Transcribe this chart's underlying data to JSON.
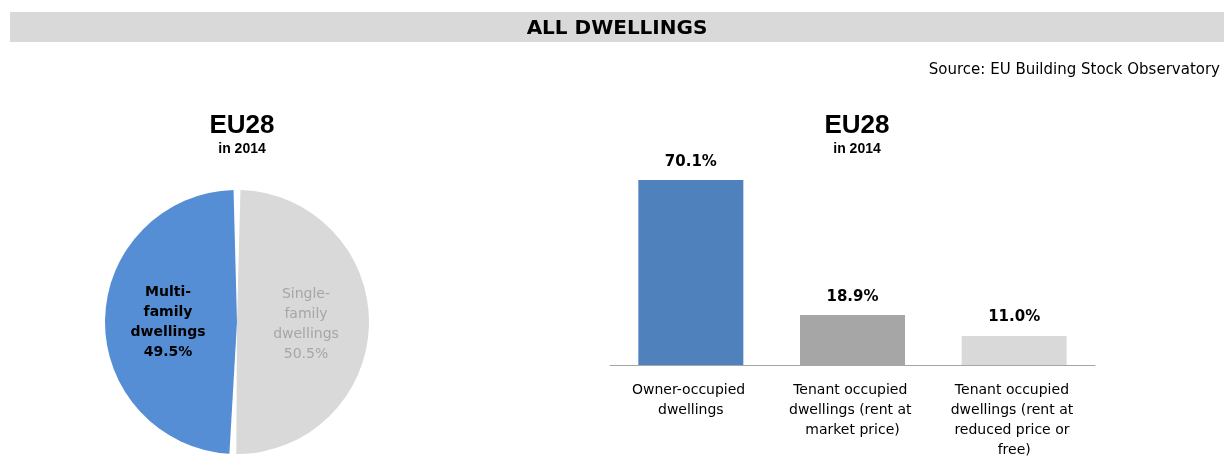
{
  "chart_data": [
    {
      "type": "pie",
      "title": "EU28",
      "subtitle": "in 2014",
      "annotations": [
        "ALL DWELLINGS",
        "Source: EU Building Stock Observatory"
      ],
      "categories": [
        "Multi-family dwellings",
        "Single-family dwellings"
      ],
      "values": [
        49.5,
        50.5
      ],
      "value_labels": [
        "49.5%",
        "50.5%"
      ],
      "colors": [
        "#558ed5",
        "#d9d9d9"
      ]
    },
    {
      "type": "bar",
      "title": "EU28",
      "subtitle": "in 2014",
      "categories": [
        "Owner-occupied dwellings",
        "Tenant occupied dwellings (rent at market price)",
        "Tenant occupied dwellings (rent at reduced price or free)"
      ],
      "values": [
        70.1,
        18.9,
        11.0
      ],
      "value_labels": [
        "70.1%",
        "18.9%",
        "11.0%"
      ],
      "colors": [
        "#4f81bd",
        "#a6a6a6",
        "#d9d9d9"
      ]
    }
  ]
}
